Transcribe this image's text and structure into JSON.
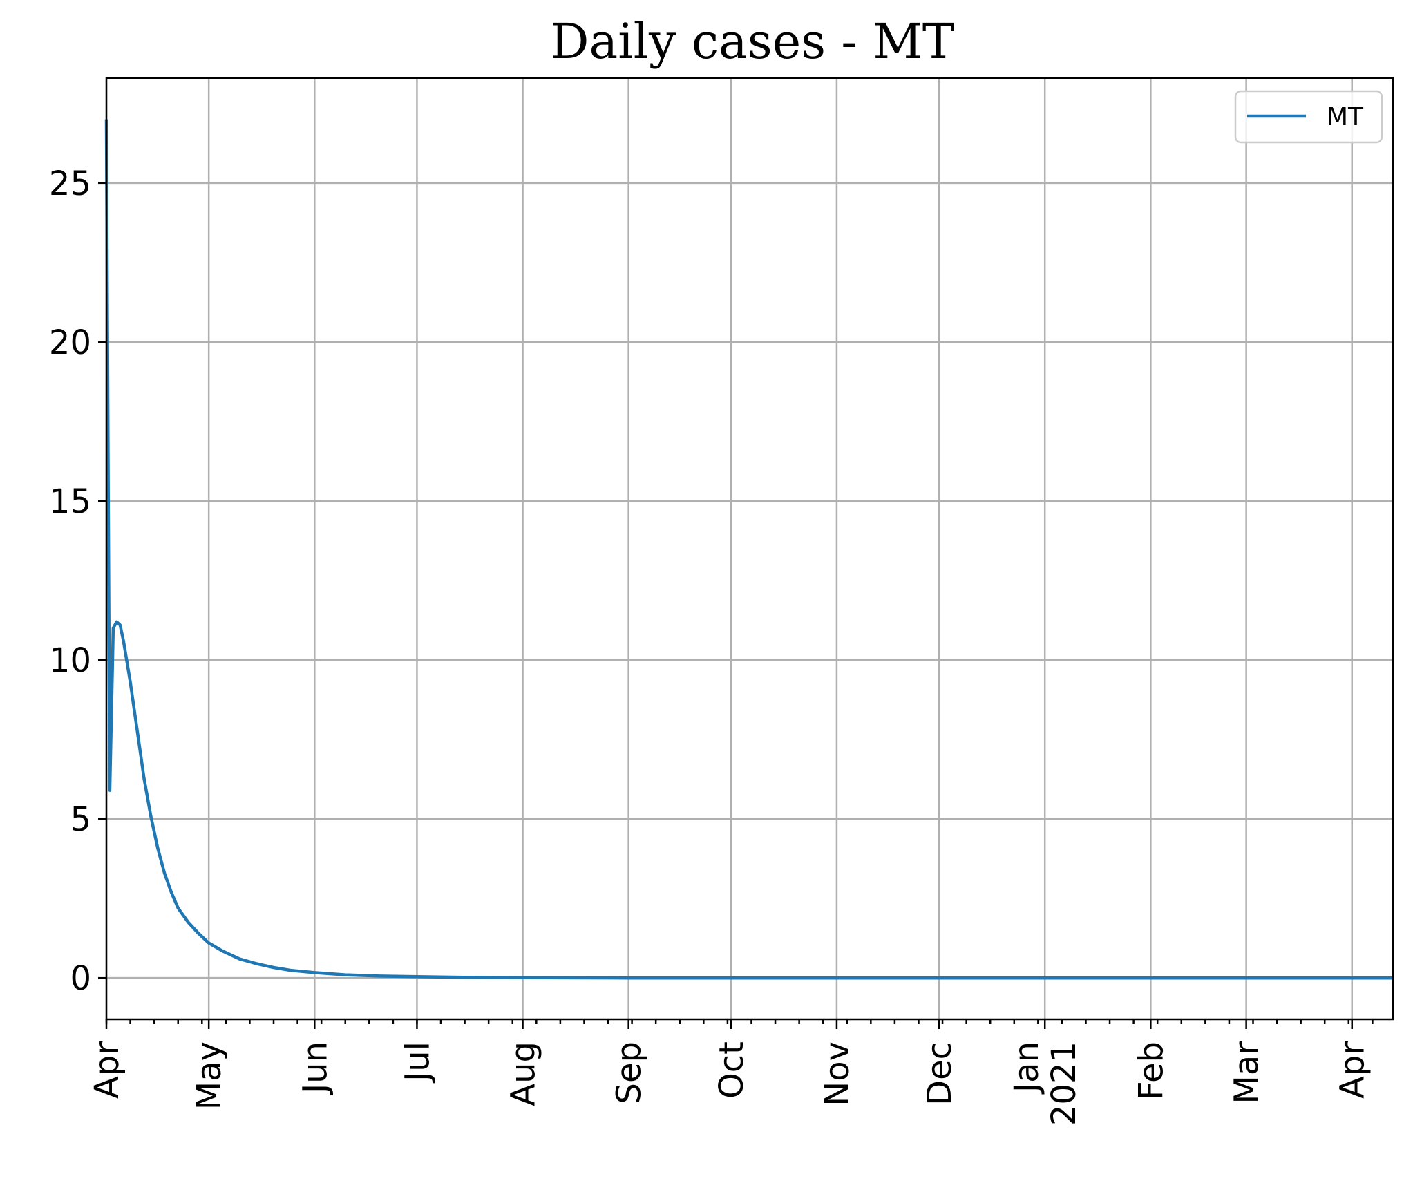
{
  "chart_data": {
    "type": "line",
    "title": "Daily cases - MT",
    "xlabel": "",
    "ylabel": "",
    "ylim": [
      -1.3,
      28.3
    ],
    "xlim": [
      "2020-04-01",
      "2021-04-13"
    ],
    "grid": true,
    "legend_position": "top-right",
    "yticks": [
      0,
      5,
      10,
      15,
      20,
      25
    ],
    "ytick_labels": [
      "0",
      "5",
      "10",
      "15",
      "20",
      "25"
    ],
    "xticks": [
      {
        "date": "2020-04-01",
        "label": "Apr"
      },
      {
        "date": "2020-05-01",
        "label": "May"
      },
      {
        "date": "2020-06-01",
        "label": "Jun"
      },
      {
        "date": "2020-07-01",
        "label": "Jul"
      },
      {
        "date": "2020-08-01",
        "label": "Aug"
      },
      {
        "date": "2020-09-01",
        "label": "Sep"
      },
      {
        "date": "2020-10-01",
        "label": "Oct"
      },
      {
        "date": "2020-11-01",
        "label": "Nov"
      },
      {
        "date": "2020-12-01",
        "label": "Dec"
      },
      {
        "date": "2021-01-01",
        "label": "Jan\n2021"
      },
      {
        "date": "2021-02-01",
        "label": "Feb"
      },
      {
        "date": "2021-03-01",
        "label": "Mar"
      },
      {
        "date": "2021-04-01",
        "label": "Apr"
      }
    ],
    "series": [
      {
        "name": "MT",
        "color": "#1f77b4",
        "x": [
          "2020-04-01",
          "2020-04-02",
          "2020-04-03",
          "2020-04-04",
          "2020-04-05",
          "2020-04-06",
          "2020-04-08",
          "2020-04-10",
          "2020-04-12",
          "2020-04-14",
          "2020-04-16",
          "2020-04-18",
          "2020-04-20",
          "2020-04-22",
          "2020-04-25",
          "2020-04-28",
          "2020-05-01",
          "2020-05-05",
          "2020-05-10",
          "2020-05-15",
          "2020-05-20",
          "2020-05-25",
          "2020-06-01",
          "2020-06-10",
          "2020-06-20",
          "2020-07-01",
          "2020-07-15",
          "2020-08-01",
          "2020-09-01",
          "2020-10-01",
          "2020-11-01",
          "2020-12-01",
          "2021-01-01",
          "2021-02-01",
          "2021-03-01",
          "2021-04-01",
          "2021-04-13"
        ],
        "y": [
          27.0,
          5.9,
          11.0,
          11.2,
          11.1,
          10.6,
          9.3,
          7.8,
          6.3,
          5.1,
          4.1,
          3.3,
          2.7,
          2.2,
          1.75,
          1.4,
          1.1,
          0.85,
          0.6,
          0.45,
          0.33,
          0.24,
          0.17,
          0.1,
          0.06,
          0.04,
          0.02,
          0.01,
          0,
          0,
          0,
          0,
          0,
          0,
          0,
          0,
          0
        ]
      }
    ]
  }
}
